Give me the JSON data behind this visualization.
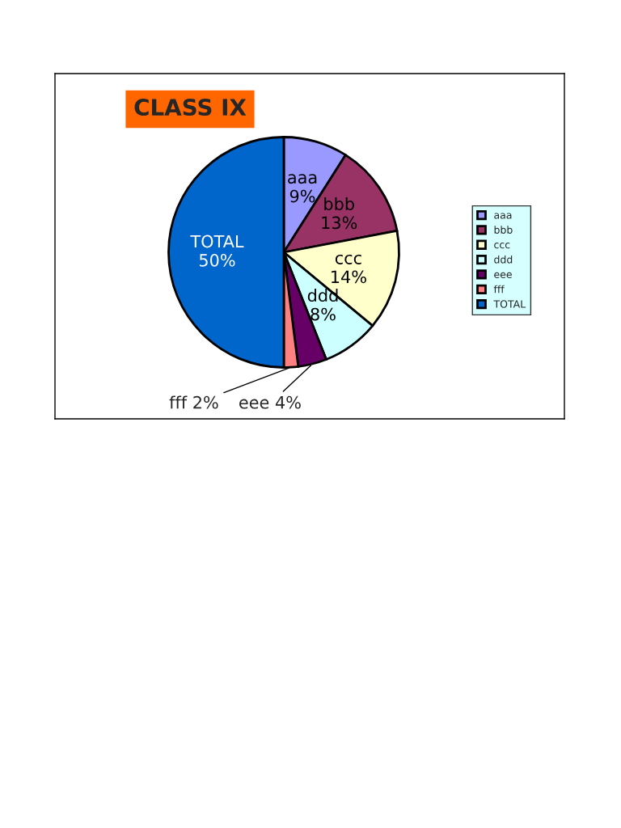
{
  "chart_data": {
    "type": "pie",
    "title": "CLASS IX",
    "categories": [
      "aaa",
      "bbb",
      "ccc",
      "ddd",
      "eee",
      "fff",
      "TOTAL"
    ],
    "values": [
      9,
      13,
      14,
      8,
      4,
      2,
      50
    ],
    "value_labels": [
      "9%",
      "13%",
      "14%",
      "8%",
      "4%",
      "2%",
      "50%"
    ],
    "colors": [
      "#9999ff",
      "#993366",
      "#ffffcc",
      "#ccffff",
      "#660066",
      "#ff8080",
      "#0066cc"
    ],
    "legend": "right"
  }
}
